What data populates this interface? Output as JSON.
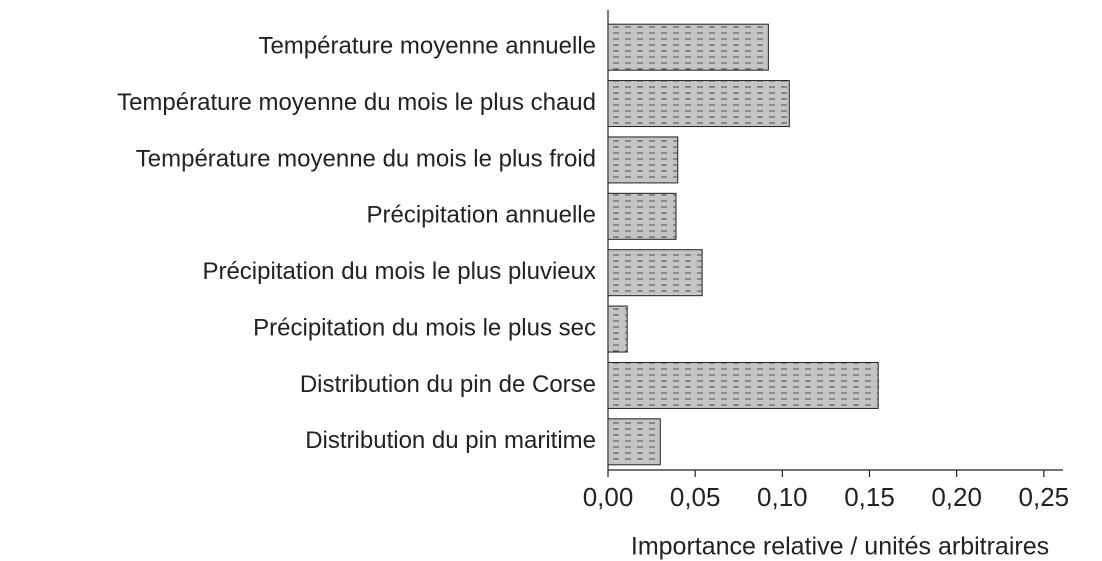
{
  "chart_data": {
    "type": "barh",
    "categories": [
      "Température moyenne annuelle",
      "Température moyenne du mois le plus chaud",
      "Température moyenne du mois le plus froid",
      "Précipitation annuelle",
      "Précipitation du mois le plus pluvieux",
      "Précipitation du mois le plus sec",
      "Distribution du pin de Corse",
      "Distribution du pin maritime"
    ],
    "values": [
      0.092,
      0.104,
      0.04,
      0.039,
      0.054,
      0.011,
      0.155,
      0.03
    ],
    "color": "#c4c4c4",
    "xlabel": "Importance relative / unités arbitraires",
    "xlim": [
      0,
      0.261
    ],
    "xticks": [
      {
        "value": 0,
        "label": "0,00"
      },
      {
        "value": 0.05,
        "label": "0,05"
      },
      {
        "value": 0.1,
        "label": "0,10"
      },
      {
        "value": 0.15,
        "label": "0,15"
      },
      {
        "value": 0.2,
        "label": "0,20"
      },
      {
        "value": 0.25,
        "label": "0,25"
      }
    ]
  }
}
